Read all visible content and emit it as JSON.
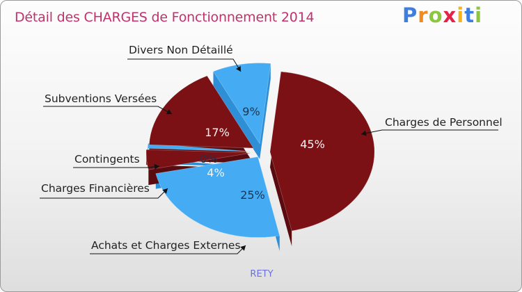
{
  "title": "Détail des CHARGES de Fonctionnement 2014",
  "logo": {
    "letters": [
      "P",
      "r",
      "o",
      "x",
      "i",
      "t",
      "i"
    ],
    "colors": [
      "#3d7fe0",
      "#f28a1c",
      "#8cc63f",
      "#e2244a",
      "#f2b51c",
      "#3d7fe0",
      "#8cc63f"
    ]
  },
  "footer": "RETY",
  "colors": {
    "dark_red": "#7b1015",
    "blue": "#45acf3"
  },
  "chart_data": {
    "type": "pie",
    "title": "Détail des CHARGES de Fonctionnement 2014",
    "slices": [
      {
        "label": "Charges de Personnel",
        "value": 45,
        "percent_label": "45%",
        "color": "#7b1015"
      },
      {
        "label": "Achats et Charges Externes",
        "value": 25,
        "percent_label": "25%",
        "color": "#45acf3"
      },
      {
        "label": "Charges Financières",
        "value": 4,
        "percent_label": "4%",
        "color": "#7b1015"
      },
      {
        "label": "Contingents",
        "value": 0,
        "percent_label": "0%",
        "color": "#45acf3"
      },
      {
        "label": "Subventions Versées",
        "value": 17,
        "percent_label": "17%",
        "color": "#7b1015"
      },
      {
        "label": "Divers Non Détaillé",
        "value": 9,
        "percent_label": "9%",
        "color": "#45acf3"
      }
    ]
  }
}
